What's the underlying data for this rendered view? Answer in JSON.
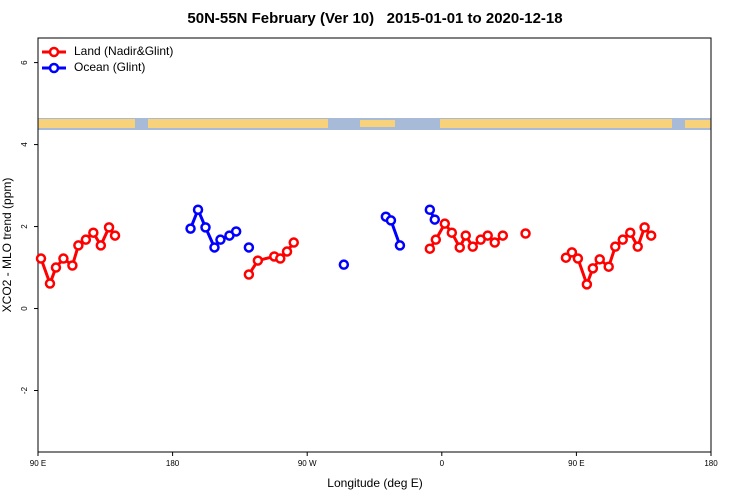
{
  "chart_data": {
    "type": "line",
    "title": "50N-55N February (Ver 10)   2015-01-01 to 2020-12-18",
    "x_label": "Longitude (deg E)",
    "y_label": "XCO2 - MLO trend (ppm)",
    "xlim": [
      -270,
      180
    ],
    "xticks": [
      {
        "value": -270,
        "label": "90 E"
      },
      {
        "value": -180,
        "label": "180"
      },
      {
        "value": -90,
        "label": "90 W"
      },
      0,
      {
        "value": 90,
        "label": "90 E"
      },
      180
    ],
    "ylim": [
      -3.5,
      6.6
    ],
    "yticks": [
      -2,
      0,
      2,
      4,
      6
    ],
    "legend": "top-left",
    "series": [
      {
        "name": "Land (Nadir&Glint)",
        "color": "#ff0000",
        "x": [
          -268,
          -262,
          -258,
          -253,
          -247,
          -243,
          -238,
          -233,
          -228,
          -222.5,
          -218.5,
          null,
          -129,
          -123,
          -112,
          -108,
          -103.5,
          -99,
          null,
          -8,
          -4,
          2,
          6.7,
          12,
          16,
          20.7,
          26,
          30.7,
          35.4,
          40.8,
          null,
          56,
          null,
          83,
          87,
          91,
          97,
          101,
          105.6,
          111.6,
          116,
          121,
          126,
          131,
          135.6,
          140
        ],
        "values": [
          1.22,
          0.61,
          1.0,
          1.22,
          1.05,
          1.54,
          1.68,
          1.85,
          1.54,
          1.98,
          1.78,
          null,
          0.83,
          1.17,
          1.27,
          1.22,
          1.39,
          1.61,
          null,
          1.46,
          1.68,
          2.07,
          1.85,
          1.49,
          1.78,
          1.51,
          1.68,
          1.78,
          1.61,
          1.78,
          null,
          1.83,
          null,
          1.24,
          1.37,
          1.22,
          0.59,
          0.98,
          1.2,
          1.02,
          1.51,
          1.68,
          1.85,
          1.51,
          1.98,
          1.78
        ]
      },
      {
        "name": "Ocean (Glint)",
        "color": "#0000ff",
        "x": [
          -168,
          -163,
          -158,
          -152,
          -148,
          -142,
          -137.5,
          null,
          -129,
          null,
          -65.5,
          null,
          -37.4,
          -34,
          -28,
          null,
          -8,
          -4.7
        ],
        "values": [
          1.95,
          2.41,
          1.98,
          1.49,
          1.68,
          1.78,
          1.88,
          null,
          1.49,
          null,
          1.07,
          null,
          2.24,
          2.15,
          1.54,
          null,
          2.41,
          2.17
        ]
      }
    ]
  }
}
